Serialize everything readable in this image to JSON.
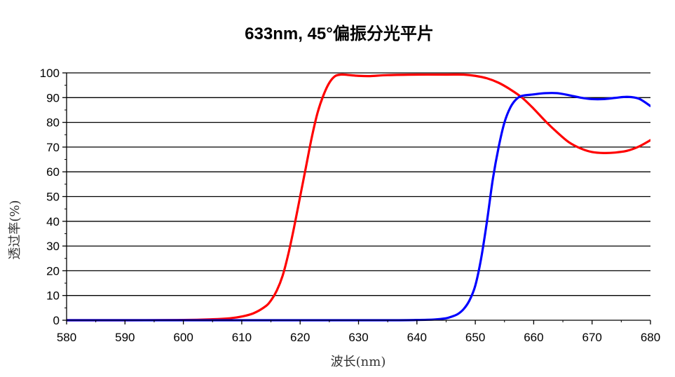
{
  "chart_data": {
    "type": "line",
    "title": "633nm, 45°偏振分光平片",
    "xlabel": "波长(nm)",
    "ylabel": "透过率(%)",
    "xlim": [
      580,
      680
    ],
    "ylim": [
      0,
      100
    ],
    "x_ticks": [
      580,
      590,
      600,
      610,
      620,
      630,
      640,
      650,
      660,
      670,
      680
    ],
    "y_ticks": [
      0,
      10,
      20,
      30,
      40,
      50,
      60,
      70,
      80,
      90,
      100
    ],
    "grid": "horizontal",
    "legend": "none",
    "series": [
      {
        "color": "#ff0000",
        "points": [
          [
            580,
            0
          ],
          [
            590,
            0
          ],
          [
            600,
            0.1
          ],
          [
            605,
            0.4
          ],
          [
            608,
            0.8
          ],
          [
            610,
            1.5
          ],
          [
            612,
            2.8
          ],
          [
            614,
            5.5
          ],
          [
            615,
            8
          ],
          [
            616,
            12
          ],
          [
            617,
            18
          ],
          [
            618,
            27
          ],
          [
            619,
            38
          ],
          [
            620,
            50
          ],
          [
            621,
            62
          ],
          [
            622,
            74
          ],
          [
            623,
            84
          ],
          [
            624,
            91
          ],
          [
            625,
            96
          ],
          [
            626,
            98.7
          ],
          [
            627,
            99.3
          ],
          [
            628,
            99.2
          ],
          [
            630,
            98.8
          ],
          [
            632,
            98.7
          ],
          [
            635,
            99.1
          ],
          [
            640,
            99.3
          ],
          [
            645,
            99.3
          ],
          [
            648,
            99.3
          ],
          [
            650,
            98.8
          ],
          [
            652,
            97.8
          ],
          [
            654,
            96
          ],
          [
            656,
            93.3
          ],
          [
            658,
            90
          ],
          [
            660,
            85.5
          ],
          [
            662,
            80.5
          ],
          [
            664,
            76
          ],
          [
            666,
            72
          ],
          [
            668,
            69.5
          ],
          [
            670,
            68
          ],
          [
            672,
            67.6
          ],
          [
            674,
            67.8
          ],
          [
            676,
            68.5
          ],
          [
            678,
            70.2
          ],
          [
            680,
            72.8
          ]
        ]
      },
      {
        "color": "#0000ff",
        "points": [
          [
            580,
            0
          ],
          [
            600,
            0
          ],
          [
            620,
            0
          ],
          [
            635,
            0
          ],
          [
            640,
            0.1
          ],
          [
            643,
            0.3
          ],
          [
            645,
            0.8
          ],
          [
            646,
            1.5
          ],
          [
            647,
            2.5
          ],
          [
            648,
            4.5
          ],
          [
            649,
            8
          ],
          [
            650,
            14
          ],
          [
            651,
            25
          ],
          [
            652,
            40
          ],
          [
            653,
            57
          ],
          [
            654,
            70
          ],
          [
            655,
            80
          ],
          [
            656,
            86
          ],
          [
            657,
            89.3
          ],
          [
            658,
            90.7
          ],
          [
            660,
            91.3
          ],
          [
            662,
            91.8
          ],
          [
            664,
            91.8
          ],
          [
            666,
            91
          ],
          [
            668,
            90
          ],
          [
            670,
            89.4
          ],
          [
            672,
            89.4
          ],
          [
            674,
            89.9
          ],
          [
            676,
            90.3
          ],
          [
            678,
            89.6
          ],
          [
            680,
            86.6
          ]
        ]
      }
    ]
  }
}
